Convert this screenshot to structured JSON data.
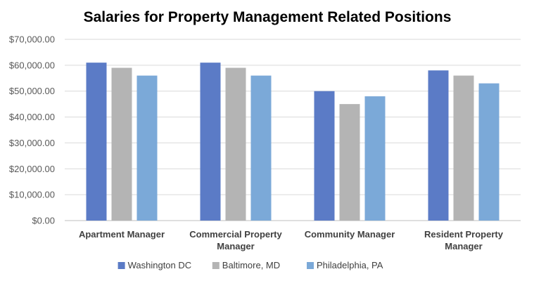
{
  "chart_data": {
    "type": "bar",
    "title": "Salaries for Property Management Related Positions",
    "xlabel": "",
    "ylabel": "",
    "categories": [
      [
        "Apartment Manager"
      ],
      [
        "Commercial Property",
        "Manager"
      ],
      [
        "Community Manager"
      ],
      [
        "Resident Property",
        "Manager"
      ]
    ],
    "series": [
      {
        "name": "Washington DC",
        "color": "#5B7BC6",
        "values": [
          61000,
          61000,
          50000,
          58000
        ]
      },
      {
        "name": "Baltimore, MD",
        "color": "#B4B4B4",
        "values": [
          59000,
          59000,
          45000,
          56000
        ]
      },
      {
        "name": "Philadelphia, PA",
        "color": "#7BA9D8",
        "values": [
          56000,
          56000,
          48000,
          53000
        ]
      }
    ],
    "ylim": [
      0,
      70000
    ],
    "yticks": [
      "$0.00",
      "$10,000.00",
      "$20,000.00",
      "$30,000.00",
      "$40,000.00",
      "$50,000.00",
      "$60,000.00",
      "$70,000.00"
    ],
    "ytick_values": [
      0,
      10000,
      20000,
      30000,
      40000,
      50000,
      60000,
      70000
    ],
    "grid": true,
    "legend_position": "bottom"
  }
}
